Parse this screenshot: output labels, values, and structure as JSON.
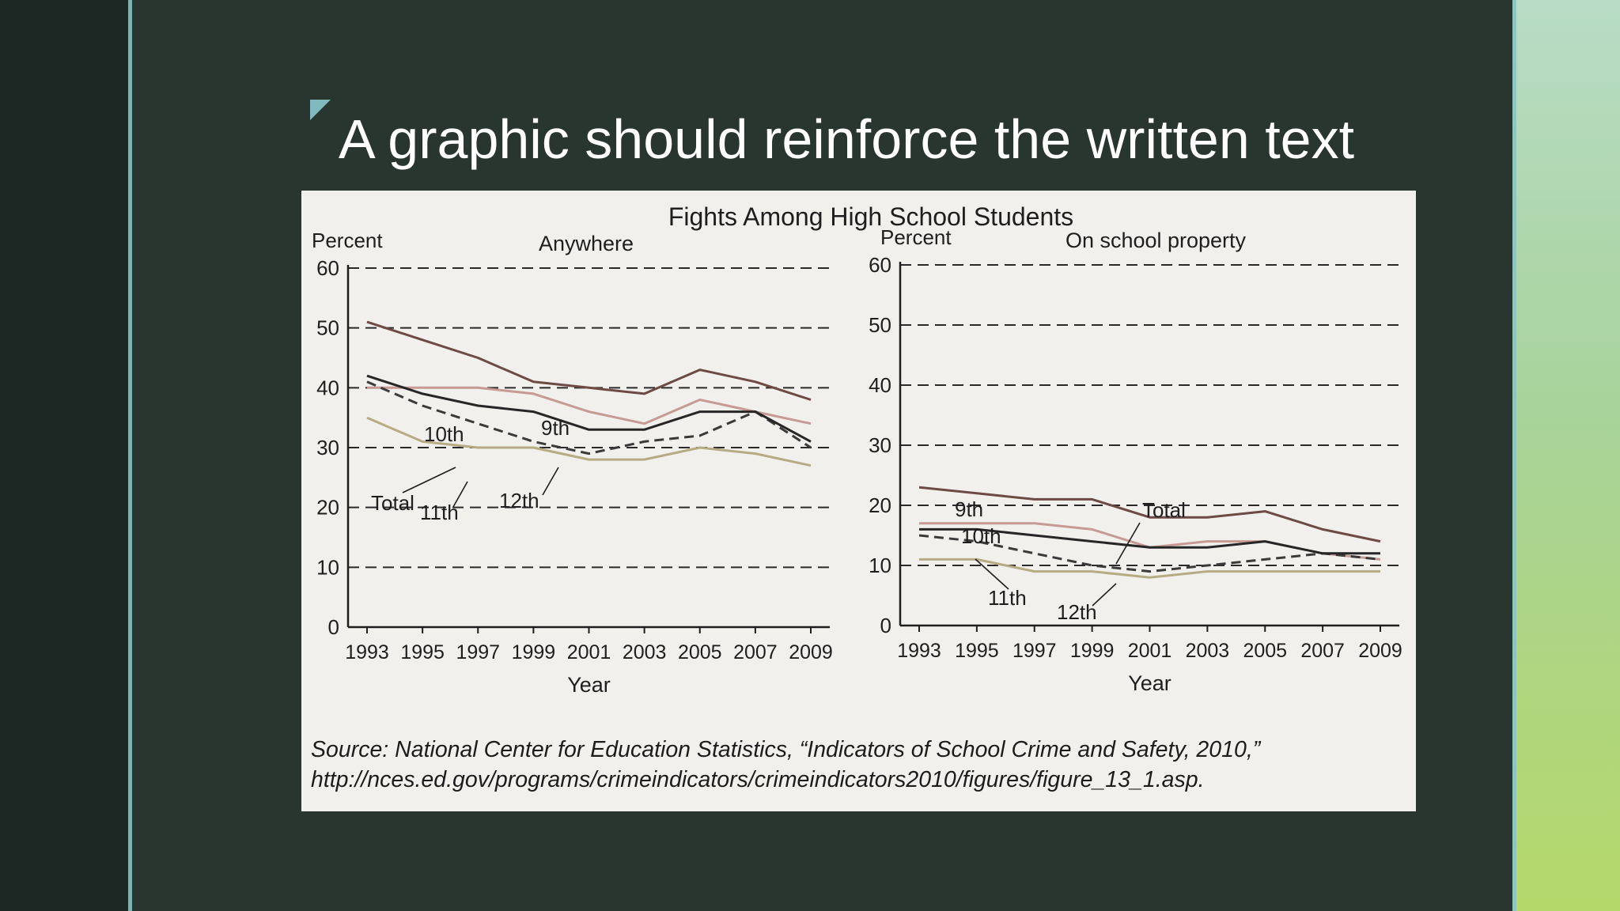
{
  "slide": {
    "title": "A graphic should reinforce the written text"
  },
  "figure": {
    "title": "Fights Among High School Students",
    "source_line1": "Source: National Center for Education Statistics, “Indicators of School Crime and Safety, 2010,”",
    "source_line2": "http://nces.ed.gov/programs/crimeindicators/crimeindicators2010/figures/figure_13_1.asp."
  },
  "colors": {
    "slide_background": "#29352f",
    "accent": "#7fb8bd",
    "figure_background": "#f1f0ed",
    "series_9th": "#6e4a44",
    "series_10th": "#c79a93",
    "series_11th": "#b8ab84",
    "series_12th": "#3a3a3a",
    "series_total": "#262626"
  },
  "chart_data": [
    {
      "type": "line",
      "title": "Anywhere",
      "ylabel": "Percent",
      "xlabel": "Year",
      "ylim": [
        0,
        60
      ],
      "yticks": [
        0,
        10,
        20,
        30,
        40,
        50,
        60
      ],
      "grid": "dashed horizontal",
      "x": [
        "1993",
        "1995",
        "1997",
        "1999",
        "2001",
        "2003",
        "2005",
        "2007",
        "2009"
      ],
      "series": [
        {
          "name": "9th",
          "color": "#6e4a44",
          "values": [
            51,
            48,
            45,
            41,
            40,
            39,
            43,
            41,
            38
          ]
        },
        {
          "name": "10th",
          "color": "#c79a93",
          "values": [
            40,
            40,
            40,
            39,
            36,
            34,
            38,
            36,
            34
          ]
        },
        {
          "name": "11th",
          "color": "#b8ab84",
          "values": [
            35,
            31,
            30,
            30,
            28,
            28,
            30,
            29,
            27
          ]
        },
        {
          "name": "12th",
          "color": "#3a3a3a",
          "dashed": true,
          "values": [
            41,
            37,
            34,
            31,
            29,
            31,
            32,
            36,
            30
          ]
        },
        {
          "name": "Total",
          "color": "#262626",
          "values": [
            42,
            39,
            37,
            36,
            33,
            33,
            36,
            36,
            31
          ]
        }
      ],
      "annotations": [
        "10th",
        "9th",
        "Total",
        "11th",
        "12th"
      ]
    },
    {
      "type": "line",
      "title": "On school property",
      "ylabel": "Percent",
      "xlabel": "Year",
      "ylim": [
        0,
        60
      ],
      "yticks": [
        0,
        10,
        20,
        30,
        40,
        50,
        60
      ],
      "grid": "dashed horizontal",
      "x": [
        "1993",
        "1995",
        "1997",
        "1999",
        "2001",
        "2003",
        "2005",
        "2007",
        "2009"
      ],
      "series": [
        {
          "name": "9th",
          "color": "#6e4a44",
          "values": [
            23,
            22,
            21,
            21,
            18,
            18,
            19,
            16,
            14
          ]
        },
        {
          "name": "10th",
          "color": "#c79a93",
          "values": [
            17,
            17,
            17,
            16,
            13,
            14,
            14,
            12,
            11
          ]
        },
        {
          "name": "11th",
          "color": "#b8ab84",
          "values": [
            11,
            11,
            9,
            9,
            8,
            9,
            9,
            9,
            9
          ]
        },
        {
          "name": "12th",
          "color": "#3a3a3a",
          "dashed": true,
          "values": [
            15,
            14,
            12,
            10,
            9,
            10,
            11,
            12,
            11
          ]
        },
        {
          "name": "Total",
          "color": "#262626",
          "values": [
            16,
            16,
            15,
            14,
            13,
            13,
            14,
            12,
            12
          ]
        }
      ],
      "annotations": [
        "9th",
        "10th",
        "Total",
        "11th",
        "12th"
      ]
    }
  ]
}
